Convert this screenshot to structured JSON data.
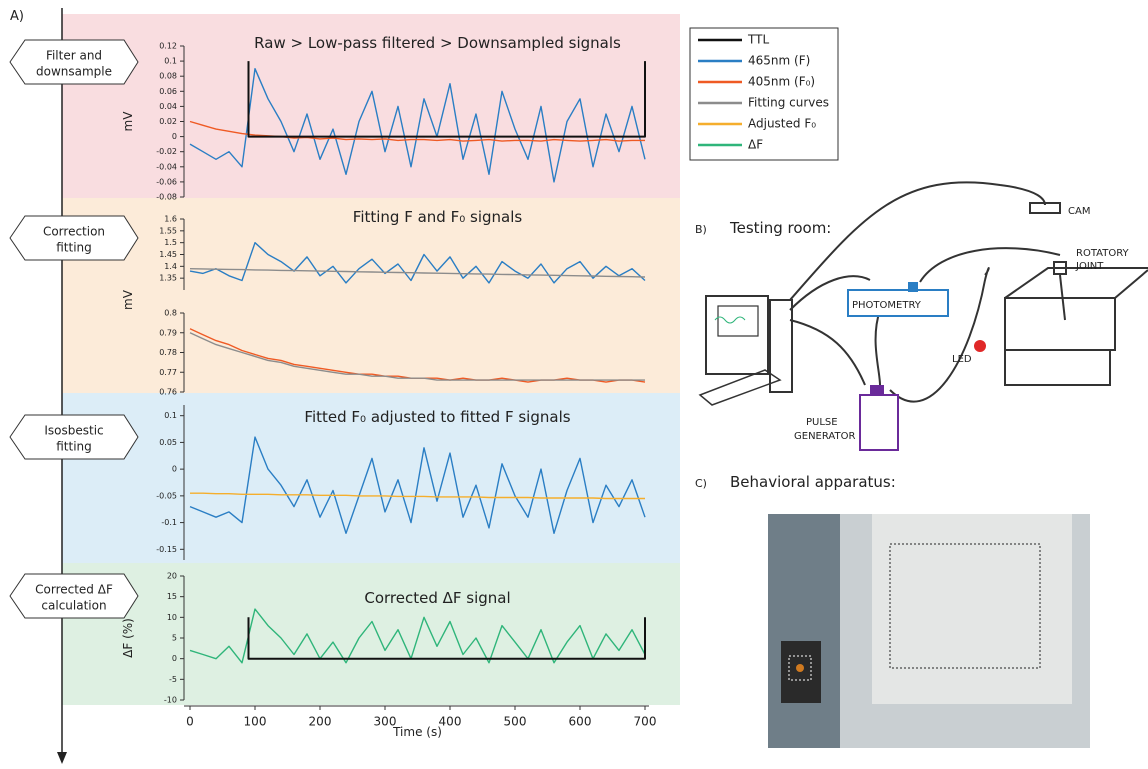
{
  "panels": {
    "a": "A)",
    "b": "B)",
    "b_title": "Testing room:",
    "c": "C)",
    "c_title": "Behavioral apparatus:"
  },
  "steps": [
    [
      "Filter and",
      "downsample"
    ],
    [
      "Correction",
      "fitting"
    ],
    [
      "Isosbestic",
      "fitting"
    ],
    [
      "Corrected ΔF",
      "calculation"
    ]
  ],
  "legend": {
    "entries": [
      {
        "name": "TTL",
        "color": "#111111"
      },
      {
        "name": "465nm (F)",
        "color": "#2a7ec4"
      },
      {
        "name": "405nm (F₀)",
        "color": "#ef5a24"
      },
      {
        "name": "Fitting curves",
        "color": "#8c8c8c"
      },
      {
        "name": "Adjusted F₀",
        "color": "#f5ae2c"
      },
      {
        "name": "ΔF",
        "color": "#2fb57a"
      }
    ]
  },
  "diagram": {
    "cam": "CAM",
    "rotatory": [
      "ROTATORY",
      "JOINT"
    ],
    "photometry": "PHOTOMETRY",
    "led": "LED",
    "pulse": [
      "PULSE",
      "GENERATOR"
    ]
  },
  "chart_data": [
    {
      "type": "line",
      "title": "Raw > Low-pass filtered > Downsampled signals",
      "ylabel": "mV",
      "xlim": [
        0,
        700
      ],
      "ylim": [
        -0.08,
        0.12
      ],
      "yticks": [
        0.12,
        0.1,
        0.08,
        0.06,
        0.04,
        0.02,
        0,
        -0.02,
        -0.04,
        -0.06,
        -0.08
      ],
      "x": [
        0,
        20,
        40,
        60,
        80,
        100,
        120,
        140,
        160,
        180,
        200,
        220,
        240,
        260,
        280,
        300,
        320,
        340,
        360,
        380,
        400,
        420,
        440,
        460,
        480,
        500,
        520,
        540,
        560,
        580,
        600,
        620,
        640,
        660,
        680,
        700
      ],
      "series": [
        {
          "color": "#2a7ec4",
          "values": [
            -0.01,
            -0.02,
            -0.03,
            -0.02,
            -0.04,
            0.09,
            0.05,
            0.02,
            -0.02,
            0.03,
            -0.03,
            0.01,
            -0.05,
            0.02,
            0.06,
            -0.02,
            0.04,
            -0.04,
            0.05,
            0,
            0.07,
            -0.03,
            0.03,
            -0.05,
            0.06,
            0.01,
            -0.03,
            0.04,
            -0.06,
            0.02,
            0.05,
            -0.04,
            0.03,
            -0.02,
            0.04,
            -0.03
          ]
        },
        {
          "color": "#ef5a24",
          "values": [
            0.02,
            0.015,
            0.01,
            0.007,
            0.004,
            0.002,
            0.001,
            0,
            -0.002,
            -0.001,
            -0.003,
            -0.002,
            -0.004,
            -0.003,
            -0.004,
            -0.003,
            -0.005,
            -0.004,
            -0.004,
            -0.005,
            -0.004,
            -0.006,
            -0.005,
            -0.004,
            -0.006,
            -0.005,
            -0.005,
            -0.006,
            -0.004,
            -0.005,
            -0.006,
            -0.005,
            -0.004,
            -0.006,
            -0.005,
            -0.005
          ]
        },
        {
          "color": "#111111",
          "x": [
            90,
            90,
            700,
            700
          ],
          "values": [
            0.1,
            0,
            0,
            0.1
          ]
        }
      ]
    },
    {
      "type": "line",
      "title": "Fitting F and F₀ signals",
      "ylabel": "mV",
      "xlim": [
        0,
        700
      ],
      "ylim": [
        1.3,
        1.6
      ],
      "yticks": [
        1.6,
        1.55,
        1.5,
        1.45,
        1.4,
        1.35
      ],
      "x": [
        0,
        20,
        40,
        60,
        80,
        100,
        120,
        140,
        160,
        180,
        200,
        220,
        240,
        260,
        280,
        300,
        320,
        340,
        360,
        380,
        400,
        420,
        440,
        460,
        480,
        500,
        520,
        540,
        560,
        580,
        600,
        620,
        640,
        660,
        680,
        700
      ],
      "series": [
        {
          "color": "#2a7ec4",
          "values": [
            1.38,
            1.37,
            1.39,
            1.36,
            1.34,
            1.5,
            1.45,
            1.42,
            1.38,
            1.44,
            1.36,
            1.4,
            1.33,
            1.39,
            1.43,
            1.37,
            1.41,
            1.34,
            1.45,
            1.38,
            1.44,
            1.35,
            1.4,
            1.33,
            1.42,
            1.38,
            1.35,
            1.41,
            1.33,
            1.39,
            1.42,
            1.35,
            1.4,
            1.36,
            1.39,
            1.34
          ]
        },
        {
          "color": "#8c8c8c",
          "values": [
            1.39,
            1.389,
            1.388,
            1.387,
            1.386,
            1.385,
            1.384,
            1.383,
            1.382,
            1.381,
            1.38,
            1.379,
            1.378,
            1.377,
            1.376,
            1.375,
            1.374,
            1.373,
            1.372,
            1.371,
            1.37,
            1.369,
            1.368,
            1.367,
            1.366,
            1.365,
            1.364,
            1.363,
            1.362,
            1.361,
            1.36,
            1.359,
            1.358,
            1.357,
            1.356,
            1.355
          ]
        }
      ]
    },
    {
      "type": "line",
      "xlim": [
        0,
        700
      ],
      "ylim": [
        0.76,
        0.8
      ],
      "yticks": [
        0.8,
        0.79,
        0.78,
        0.77,
        0.76
      ],
      "x": [
        0,
        20,
        40,
        60,
        80,
        100,
        120,
        140,
        160,
        180,
        200,
        220,
        240,
        260,
        280,
        300,
        320,
        340,
        360,
        380,
        400,
        420,
        440,
        460,
        480,
        500,
        520,
        540,
        560,
        580,
        600,
        620,
        640,
        660,
        680,
        700
      ],
      "series": [
        {
          "color": "#ef5a24",
          "values": [
            0.792,
            0.789,
            0.786,
            0.784,
            0.781,
            0.779,
            0.777,
            0.776,
            0.774,
            0.773,
            0.772,
            0.771,
            0.77,
            0.769,
            0.769,
            0.768,
            0.768,
            0.767,
            0.767,
            0.767,
            0.766,
            0.767,
            0.766,
            0.766,
            0.767,
            0.766,
            0.765,
            0.766,
            0.766,
            0.767,
            0.766,
            0.766,
            0.765,
            0.766,
            0.766,
            0.765
          ]
        },
        {
          "color": "#8c8c8c",
          "values": [
            0.79,
            0.787,
            0.784,
            0.782,
            0.78,
            0.778,
            0.776,
            0.775,
            0.773,
            0.772,
            0.771,
            0.77,
            0.769,
            0.769,
            0.768,
            0.768,
            0.767,
            0.767,
            0.767,
            0.766,
            0.766,
            0.766,
            0.766,
            0.766,
            0.766,
            0.766,
            0.766,
            0.766,
            0.766,
            0.766,
            0.766,
            0.766,
            0.766,
            0.766,
            0.766,
            0.766
          ]
        }
      ]
    },
    {
      "type": "line",
      "title": "Fitted F₀ adjusted to fitted F signals",
      "xlim": [
        0,
        700
      ],
      "ylim": [
        -0.17,
        0.12
      ],
      "yticks": [
        0.1,
        0.05,
        0,
        -0.05,
        -0.1,
        -0.15
      ],
      "x": [
        0,
        20,
        40,
        60,
        80,
        100,
        120,
        140,
        160,
        180,
        200,
        220,
        240,
        260,
        280,
        300,
        320,
        340,
        360,
        380,
        400,
        420,
        440,
        460,
        480,
        500,
        520,
        540,
        560,
        580,
        600,
        620,
        640,
        660,
        680,
        700
      ],
      "series": [
        {
          "color": "#2a7ec4",
          "values": [
            -0.07,
            -0.08,
            -0.09,
            -0.08,
            -0.1,
            0.06,
            0,
            -0.03,
            -0.07,
            -0.02,
            -0.09,
            -0.04,
            -0.12,
            -0.05,
            0.02,
            -0.08,
            -0.02,
            -0.1,
            0.04,
            -0.06,
            0.03,
            -0.09,
            -0.03,
            -0.11,
            0.01,
            -0.05,
            -0.09,
            0,
            -0.12,
            -0.04,
            0.02,
            -0.1,
            -0.03,
            -0.07,
            -0.02,
            -0.09
          ]
        },
        {
          "color": "#f5ae2c",
          "values": [
            -0.045,
            -0.045,
            -0.046,
            -0.046,
            -0.047,
            -0.047,
            -0.047,
            -0.048,
            -0.048,
            -0.048,
            -0.049,
            -0.049,
            -0.049,
            -0.05,
            -0.05,
            -0.05,
            -0.051,
            -0.051,
            -0.051,
            -0.052,
            -0.052,
            -0.052,
            -0.052,
            -0.053,
            -0.053,
            -0.053,
            -0.053,
            -0.054,
            -0.054,
            -0.054,
            -0.054,
            -0.054,
            -0.055,
            -0.055,
            -0.055,
            -0.055
          ]
        }
      ]
    },
    {
      "type": "line",
      "title": "Corrected ΔF signal",
      "ylabel": "ΔF (%)",
      "xlabel": "Time (s)",
      "xlim": [
        0,
        700
      ],
      "xticks": [
        0,
        100,
        200,
        300,
        400,
        500,
        600,
        700
      ],
      "ylim": [
        -10,
        20
      ],
      "yticks": [
        20,
        15,
        10,
        5,
        0,
        -5,
        -10
      ],
      "x": [
        0,
        20,
        40,
        60,
        80,
        100,
        120,
        140,
        160,
        180,
        200,
        220,
        240,
        260,
        280,
        300,
        320,
        340,
        360,
        380,
        400,
        420,
        440,
        460,
        480,
        500,
        520,
        540,
        560,
        580,
        600,
        620,
        640,
        660,
        680,
        700
      ],
      "series": [
        {
          "color": "#2fb57a",
          "values": [
            2,
            1,
            0,
            3,
            -1,
            12,
            8,
            5,
            1,
            6,
            0,
            4,
            -1,
            5,
            9,
            2,
            7,
            0,
            10,
            3,
            9,
            1,
            5,
            -1,
            8,
            4,
            0,
            7,
            -1,
            4,
            8,
            0,
            6,
            2,
            7,
            1
          ]
        },
        {
          "color": "#111111",
          "x": [
            90,
            90,
            700,
            700
          ],
          "values": [
            10,
            0,
            0,
            10
          ]
        }
      ]
    }
  ]
}
